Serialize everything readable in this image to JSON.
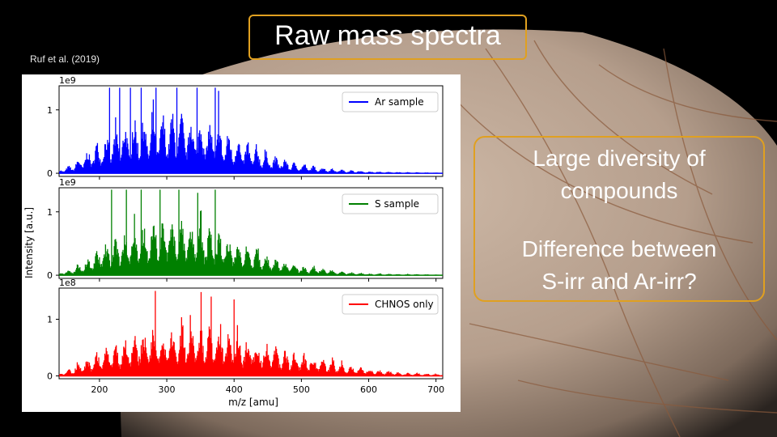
{
  "slide": {
    "title": "Raw mass spectra",
    "citation": "Ruf et al. (2019)",
    "bullets": [
      [
        "Large diversity of",
        "compounds"
      ],
      [
        "Difference between",
        "S-irr and Ar-irr?"
      ]
    ],
    "colors": {
      "box_border": "#e0a020",
      "text": "#ffffff"
    }
  },
  "chart_data": {
    "type": "bar",
    "xlabel": "m/z [amu]",
    "ylabel": "Intensity [a.u.]",
    "xlim": [
      140,
      710
    ],
    "xticks": [
      200,
      300,
      400,
      500,
      600,
      700
    ],
    "panels": [
      {
        "series_name": "Ar sample",
        "color": "#0000ff",
        "scale_label": "1e9",
        "yticks": [
          "0",
          "1"
        ],
        "ylim": [
          -0.05,
          1.38
        ],
        "envelope": [
          [
            140,
            0.05
          ],
          [
            160,
            0.15
          ],
          [
            180,
            0.35
          ],
          [
            200,
            0.55
          ],
          [
            230,
            0.75
          ],
          [
            260,
            0.9
          ],
          [
            300,
            1.0
          ],
          [
            340,
            0.95
          ],
          [
            380,
            0.75
          ],
          [
            420,
            0.5
          ],
          [
            460,
            0.28
          ],
          [
            500,
            0.15
          ],
          [
            550,
            0.07
          ],
          [
            600,
            0.03
          ],
          [
            650,
            0.02
          ],
          [
            710,
            0.01
          ]
        ],
        "peaks": [
          [
            215,
            1.35
          ],
          [
            230,
            1.35
          ],
          [
            246,
            1.35
          ],
          [
            262,
            1.35
          ],
          [
            284,
            1.35
          ],
          [
            315,
            1.35
          ],
          [
            345,
            1.35
          ],
          [
            372,
            1.35
          ],
          [
            377,
            1.3
          ]
        ]
      },
      {
        "series_name": "S sample",
        "color": "#008000",
        "scale_label": "1e9",
        "yticks": [
          "0",
          "1"
        ],
        "ylim": [
          -0.05,
          1.38
        ],
        "envelope": [
          [
            140,
            0.04
          ],
          [
            160,
            0.1
          ],
          [
            180,
            0.25
          ],
          [
            200,
            0.45
          ],
          [
            230,
            0.65
          ],
          [
            260,
            0.85
          ],
          [
            300,
            0.95
          ],
          [
            340,
            0.9
          ],
          [
            380,
            0.72
          ],
          [
            420,
            0.5
          ],
          [
            460,
            0.3
          ],
          [
            500,
            0.16
          ],
          [
            550,
            0.07
          ],
          [
            600,
            0.03
          ],
          [
            650,
            0.02
          ],
          [
            710,
            0.01
          ]
        ],
        "peaks": [
          [
            218,
            1.35
          ],
          [
            240,
            1.35
          ],
          [
            262,
            1.35
          ],
          [
            290,
            1.35
          ],
          [
            318,
            1.35
          ],
          [
            346,
            1.3
          ],
          [
            372,
            1.35
          ]
        ]
      },
      {
        "series_name": "CHNOS only",
        "color": "#ff0000",
        "scale_label": "1e8",
        "yticks": [
          "0",
          "1"
        ],
        "ylim": [
          -0.05,
          1.55
        ],
        "envelope": [
          [
            140,
            0.05
          ],
          [
            160,
            0.15
          ],
          [
            180,
            0.3
          ],
          [
            200,
            0.45
          ],
          [
            230,
            0.62
          ],
          [
            260,
            0.8
          ],
          [
            300,
            0.9
          ],
          [
            340,
            0.95
          ],
          [
            380,
            0.85
          ],
          [
            420,
            0.7
          ],
          [
            460,
            0.55
          ],
          [
            500,
            0.4
          ],
          [
            550,
            0.25
          ],
          [
            600,
            0.13
          ],
          [
            650,
            0.06
          ],
          [
            710,
            0.03
          ]
        ],
        "peaks": [
          [
            283,
            1.5
          ],
          [
            351,
            1.48
          ],
          [
            366,
            1.4
          ],
          [
            400,
            1.35
          ]
        ]
      }
    ]
  }
}
